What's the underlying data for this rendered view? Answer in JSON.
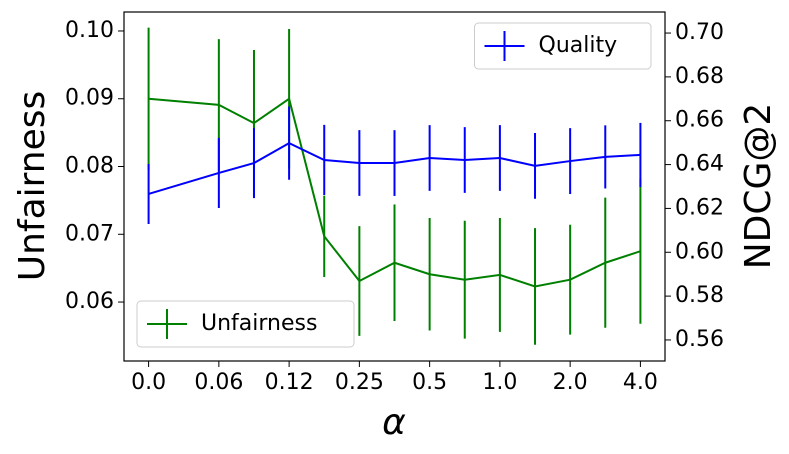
{
  "chart_data": {
    "type": "errorbar-line",
    "xlabel": "α",
    "ylabel": "Unfairness",
    "y2label": "NDCG@2",
    "x": [
      0,
      2,
      3,
      4,
      5,
      6,
      7,
      8,
      9,
      10,
      11,
      12,
      13,
      14
    ],
    "xlim": [
      -0.7,
      14.7
    ],
    "xticks": [
      {
        "value": 0,
        "label": "0.0"
      },
      {
        "value": 2,
        "label": "0.06"
      },
      {
        "value": 4,
        "label": "0.12"
      },
      {
        "value": 6,
        "label": "0.25"
      },
      {
        "value": 8,
        "label": "0.5"
      },
      {
        "value": 10,
        "label": "1.0"
      },
      {
        "value": 12,
        "label": "2.0"
      },
      {
        "value": 14,
        "label": "4.0"
      }
    ],
    "ylim": [
      0.0513,
      0.1028
    ],
    "yticks": [
      0.06,
      0.07,
      0.08,
      0.09,
      {
        "value": 0.1,
        "label": "0.10"
      }
    ],
    "y2lim": [
      0.5504,
      0.7096
    ],
    "y2ticks": [
      0.56,
      0.58,
      {
        "value": 0.6,
        "label": "0.60"
      },
      0.62,
      0.64,
      0.66,
      0.68,
      {
        "value": 0.7,
        "label": "0.70"
      }
    ],
    "series": [
      {
        "name": "Unfairness",
        "color": "#008000",
        "axis": "y",
        "legend_loc": "lower left",
        "values": [
          0.09,
          0.0891,
          0.0864,
          0.09,
          0.0697,
          0.0631,
          0.0658,
          0.0641,
          0.0633,
          0.064,
          0.0623,
          0.0633,
          0.0658,
          0.0675
        ],
        "errors": [
          0.0105,
          0.0097,
          0.0108,
          0.0103,
          0.006,
          0.0081,
          0.0086,
          0.0083,
          0.0087,
          0.0084,
          0.0086,
          0.0081,
          0.0096,
          0.0107
        ]
      },
      {
        "name": "Quality",
        "color": "#0000ff",
        "axis": "y2",
        "legend_loc": "upper right",
        "values": [
          0.6266,
          0.6362,
          0.6407,
          0.6498,
          0.6421,
          0.6407,
          0.6407,
          0.643,
          0.6421,
          0.643,
          0.6394,
          0.6416,
          0.6435,
          0.6444
        ],
        "errors": [
          0.0137,
          0.016,
          0.016,
          0.0167,
          0.016,
          0.015,
          0.015,
          0.015,
          0.015,
          0.015,
          0.015,
          0.015,
          0.0144,
          0.0146
        ]
      }
    ]
  }
}
